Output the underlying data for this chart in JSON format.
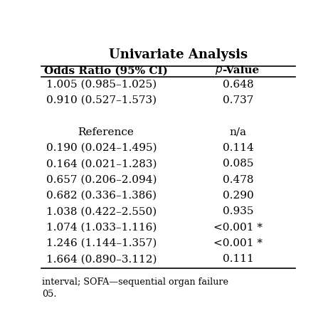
{
  "title": "Univariate Analysis",
  "col1_header": "Odds Ratio (95% CI)",
  "rows": [
    {
      "or": "1.005 (0.985–1.025)",
      "pval": "0.648",
      "or_center": false
    },
    {
      "or": "0.910 (0.527–1.573)",
      "pval": "0.737",
      "or_center": false
    },
    {
      "or": "",
      "pval": "",
      "or_center": false
    },
    {
      "or": "Reference",
      "pval": "n/a",
      "or_center": true
    },
    {
      "or": "0.190 (0.024–1.495)",
      "pval": "0.114",
      "or_center": false
    },
    {
      "or": "0.164 (0.021–1.283)",
      "pval": "0.085",
      "or_center": false
    },
    {
      "or": "0.657 (0.206–2.094)",
      "pval": "0.478",
      "or_center": false
    },
    {
      "or": "0.682 (0.336–1.386)",
      "pval": "0.290",
      "or_center": false
    },
    {
      "or": "1.038 (0.422–2.550)",
      "pval": "0.935",
      "or_center": false
    },
    {
      "or": "1.074 (1.033–1.116)",
      "pval": "<0.001 *",
      "or_center": false
    },
    {
      "or": "1.246 (1.144–1.357)",
      "pval": "<0.001 *",
      "or_center": false
    },
    {
      "or": "1.664 (0.890–3.112)",
      "pval": "0.111",
      "or_center": false
    }
  ],
  "footnote_line1": "interval; SOFA—sequential organ failure",
  "footnote_line2": "05.",
  "bg_color": "#ffffff",
  "text_color": "#000000",
  "font_size": 11,
  "title_font_size": 13
}
